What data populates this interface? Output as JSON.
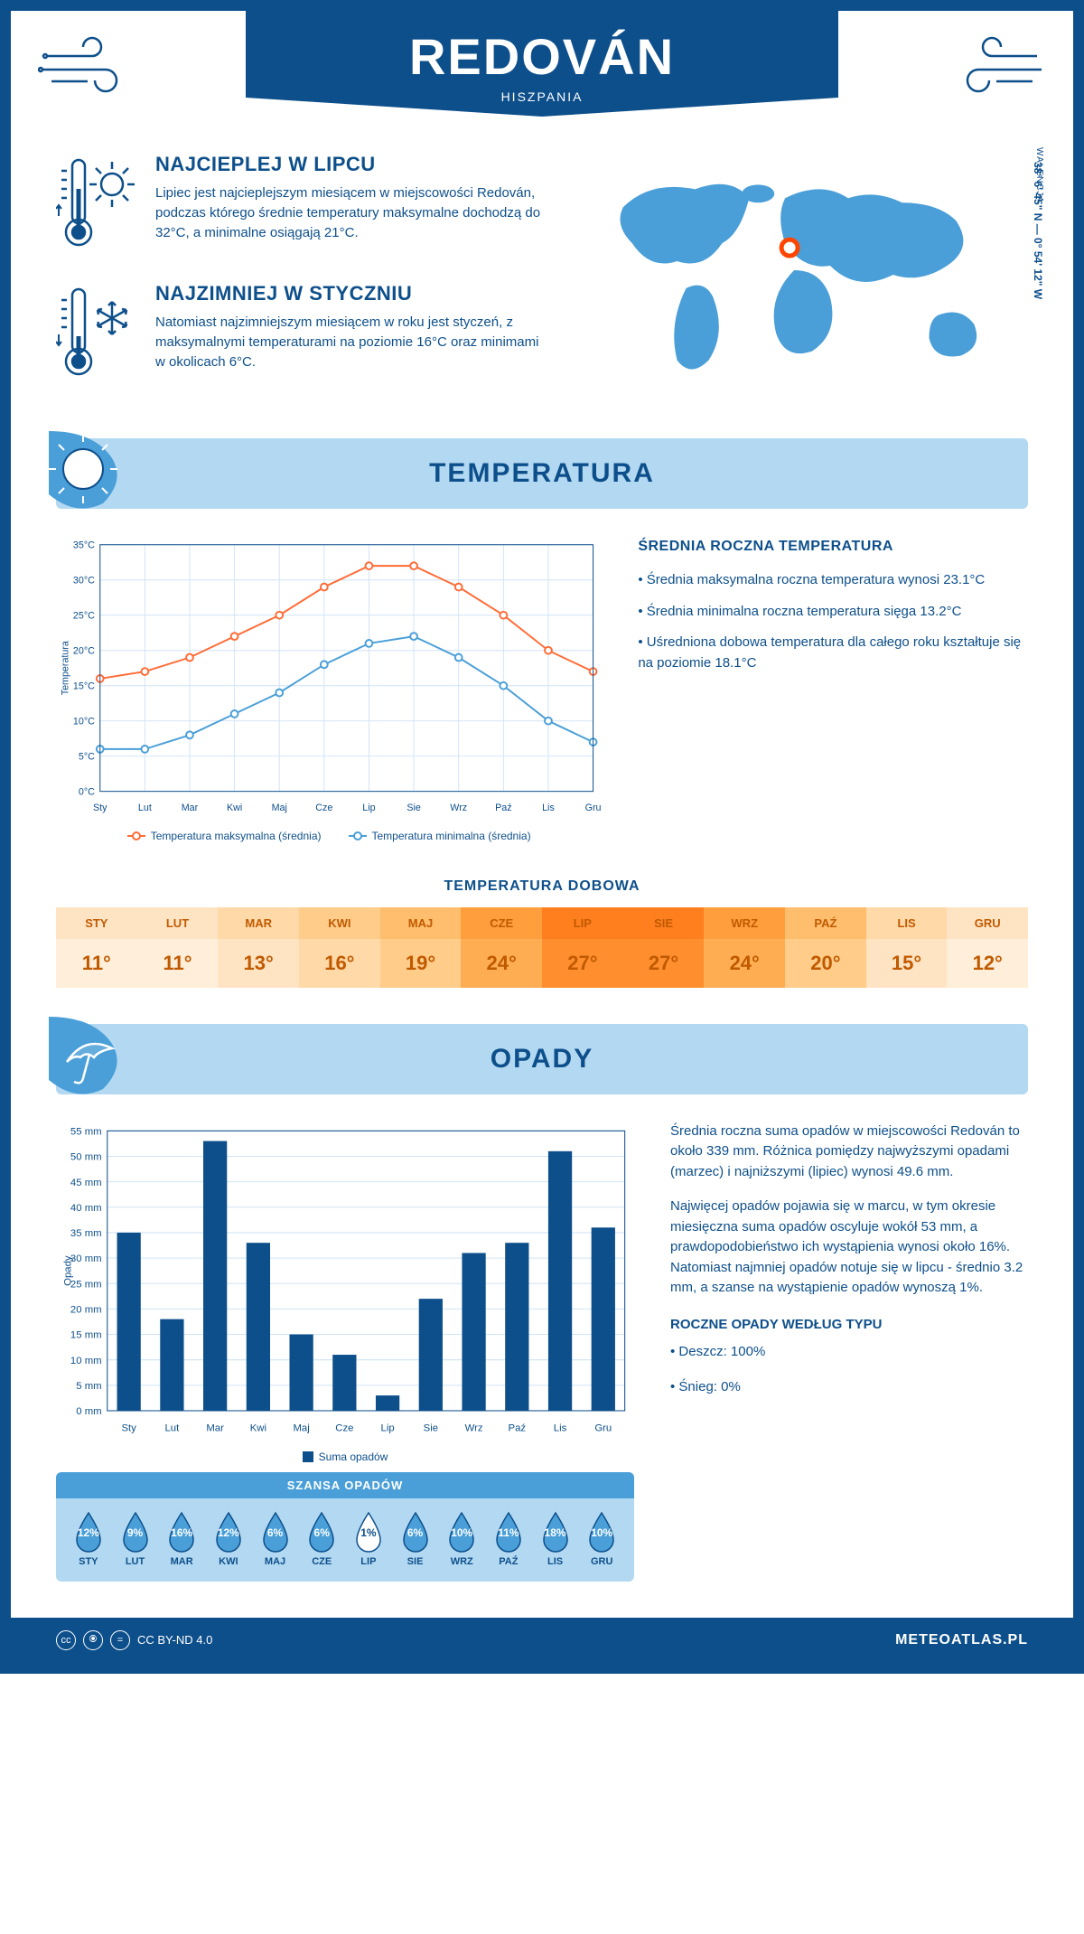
{
  "header": {
    "city": "REDOVÁN",
    "country": "HISZPANIA"
  },
  "coords": "38° 6' 45\" N — 0° 54' 12\" W",
  "region": "WALENCJA",
  "colors": {
    "primary": "#0d4f8b",
    "band": "#b3d9f2",
    "max_line": "#ff6b35",
    "min_line": "#4a9fd8",
    "bar": "#0d4f8b",
    "grid": "#d0e4f5"
  },
  "facts": {
    "hot": {
      "title": "NAJCIEPLEJ W LIPCU",
      "text": "Lipiec jest najcieplejszym miesiącem w miejscowości Redován, podczas którego średnie temperatury maksymalne dochodzą do 32°C, a minimalne osiągają 21°C."
    },
    "cold": {
      "title": "NAJZIMNIEJ W STYCZNIU",
      "text": "Natomiast najzimniejszym miesiącem w roku jest styczeń, z maksymalnymi temperaturami na poziomie 16°C oraz minimami w okolicach 6°C."
    }
  },
  "temp_section": {
    "title": "TEMPERATURA",
    "side_title": "ŚREDNIA ROCZNA TEMPERATURA",
    "bullets": [
      "• Średnia maksymalna roczna temperatura wynosi 23.1°C",
      "• Średnia minimalna roczna temperatura sięga 13.2°C",
      "• Uśredniona dobowa temperatura dla całego roku kształtuje się na poziomie 18.1°C"
    ],
    "chart": {
      "months": [
        "Sty",
        "Lut",
        "Mar",
        "Kwi",
        "Maj",
        "Cze",
        "Lip",
        "Sie",
        "Wrz",
        "Paź",
        "Lis",
        "Gru"
      ],
      "max": [
        16,
        17,
        19,
        22,
        25,
        29,
        32,
        32,
        29,
        25,
        20,
        17
      ],
      "min": [
        6,
        6,
        8,
        11,
        14,
        18,
        21,
        22,
        19,
        15,
        10,
        7
      ],
      "y_ticks": [
        0,
        5,
        10,
        15,
        20,
        25,
        30,
        35
      ],
      "y_label": "Temperatura",
      "legend_max": "Temperatura maksymalna (średnia)",
      "legend_min": "Temperatura minimalna (średnia)"
    },
    "daily_title": "TEMPERATURA DOBOWA",
    "daily": {
      "months": [
        "STY",
        "LUT",
        "MAR",
        "KWI",
        "MAJ",
        "CZE",
        "LIP",
        "SIE",
        "WRZ",
        "PAŹ",
        "LIS",
        "GRU"
      ],
      "values": [
        "11°",
        "11°",
        "13°",
        "16°",
        "19°",
        "24°",
        "27°",
        "27°",
        "24°",
        "20°",
        "15°",
        "12°"
      ],
      "head_colors": [
        "#ffe4c4",
        "#ffe4c4",
        "#ffd9a8",
        "#ffcc8a",
        "#ffbe6d",
        "#ff9e3d",
        "#ff7f1f",
        "#ff7f1f",
        "#ff9e3d",
        "#ffbe6d",
        "#ffd9a8",
        "#ffe4c4"
      ],
      "val_colors": [
        "#ffeed9",
        "#ffeed9",
        "#ffe4c4",
        "#ffd9a8",
        "#ffcc8a",
        "#ffad52",
        "#ff8e2e",
        "#ff8e2e",
        "#ffad52",
        "#ffcc8a",
        "#ffe4c4",
        "#ffeed9"
      ]
    }
  },
  "precip_section": {
    "title": "OPADY",
    "chart": {
      "months": [
        "Sty",
        "Lut",
        "Mar",
        "Kwi",
        "Maj",
        "Cze",
        "Lip",
        "Sie",
        "Wrz",
        "Paź",
        "Lis",
        "Gru"
      ],
      "values": [
        35,
        18,
        53,
        33,
        15,
        11,
        3,
        22,
        31,
        33,
        51,
        36
      ],
      "y_ticks": [
        0,
        5,
        10,
        15,
        20,
        25,
        30,
        35,
        40,
        45,
        50,
        55
      ],
      "y_label": "Opady",
      "legend": "Suma opadów"
    },
    "para1": "Średnia roczna suma opadów w miejscowości Redován to około 339 mm. Różnica pomiędzy najwyższymi opadami (marzec) i najniższymi (lipiec) wynosi 49.6 mm.",
    "para2": "Najwięcej opadów pojawia się w marcu, w tym okresie miesięczna suma opadów oscyluje wokół 53 mm, a prawdopodobieństwo ich wystąpienia wynosi około 16%. Natomiast najmniej opadów notuje się w lipcu - średnio 3.2 mm, a szanse na wystąpienie opadów wynoszą 1%.",
    "type_title": "ROCZNE OPADY WEDŁUG TYPU",
    "type_bullets": [
      "• Deszcz: 100%",
      "• Śnieg: 0%"
    ],
    "chance": {
      "title": "SZANSA OPADÓW",
      "months": [
        "STY",
        "LUT",
        "MAR",
        "KWI",
        "MAJ",
        "CZE",
        "LIP",
        "SIE",
        "WRZ",
        "PAŹ",
        "LIS",
        "GRU"
      ],
      "pct": [
        "12%",
        "9%",
        "16%",
        "12%",
        "6%",
        "6%",
        "1%",
        "6%",
        "10%",
        "11%",
        "18%",
        "10%"
      ],
      "filled": [
        true,
        true,
        true,
        true,
        true,
        true,
        false,
        true,
        true,
        true,
        true,
        true
      ]
    }
  },
  "footer": {
    "license": "CC BY-ND 4.0",
    "site": "METEOATLAS.PL"
  }
}
